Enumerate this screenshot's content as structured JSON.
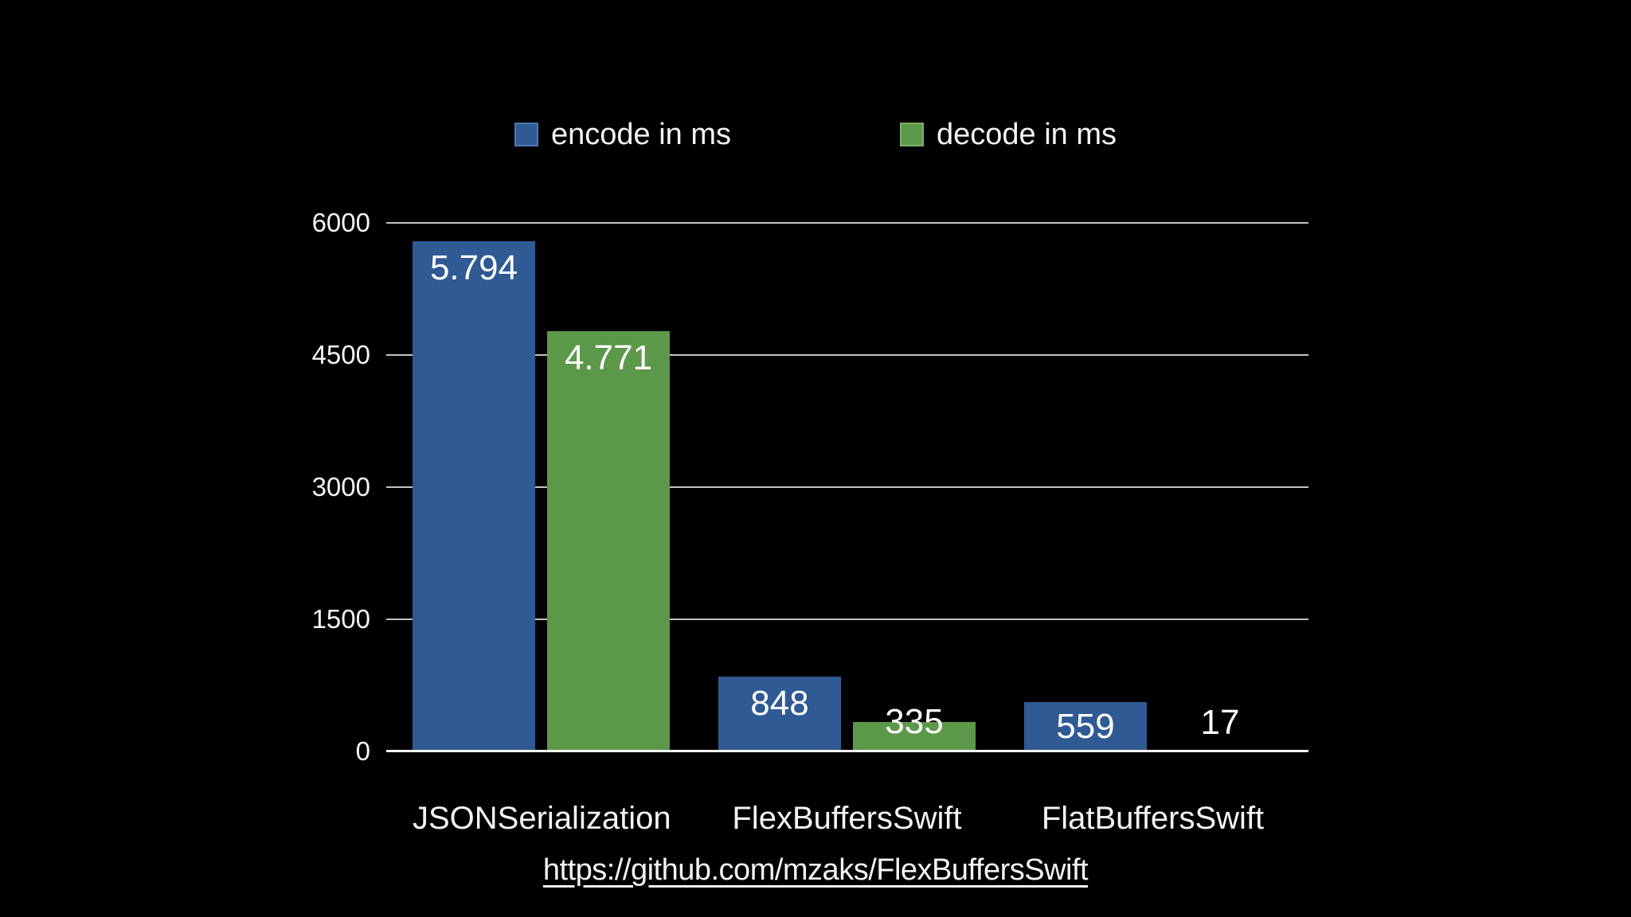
{
  "background_color": "#000000",
  "legend": {
    "items": [
      {
        "label": "encode in ms",
        "color": "#2F5A93",
        "border_color": "#4d79b3"
      },
      {
        "label": "decode in ms",
        "color": "#5C9849",
        "border_color": "#7fae6a"
      }
    ]
  },
  "footer": {
    "link_text": "https://github.com/mzaks/FlexBuffersSwift"
  },
  "chart_data": {
    "type": "bar",
    "title": "",
    "xlabel": "",
    "ylabel": "",
    "categories": [
      "JSONSerialization",
      "FlexBuffersSwift",
      "FlatBuffersSwift"
    ],
    "series": [
      {
        "name": "encode in ms",
        "color": "#2F5A93",
        "values": [
          5794,
          848,
          559
        ],
        "value_labels": [
          "5.794",
          "848",
          "559"
        ]
      },
      {
        "name": "decode in ms",
        "color": "#5C9849",
        "values": [
          4771,
          335,
          17
        ],
        "value_labels": [
          "4.771",
          "335",
          "17"
        ]
      }
    ],
    "y_ticks": [
      0,
      1500,
      3000,
      4500,
      6000
    ],
    "ylim": [
      0,
      6000
    ],
    "grid": true,
    "legend_position": "top",
    "background": "#000000",
    "gridline_color": "#c3c3c3",
    "axis_line_color": "#f4f4f4",
    "label_text_color": "#ffffff"
  }
}
